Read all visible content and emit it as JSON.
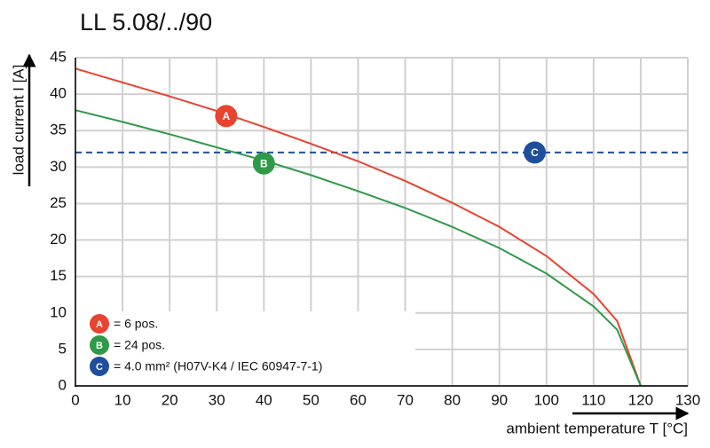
{
  "chart_data": {
    "type": "line",
    "title": "LL 5.08/../90",
    "x_label": "ambient temperature T [°C]",
    "y_label": "load current I [A]",
    "x": [
      0,
      10,
      20,
      30,
      40,
      50,
      60,
      70,
      80,
      90,
      100,
      110,
      115,
      120
    ],
    "series": [
      {
        "name": "A",
        "color": "#e8432e",
        "description": "= 6 pos.",
        "label_point": [
          32,
          37
        ],
        "values": [
          43.5,
          41.6,
          39.7,
          37.7,
          35.5,
          33.2,
          30.8,
          28.1,
          25.1,
          21.8,
          17.8,
          12.6,
          8.9,
          0
        ]
      },
      {
        "name": "B",
        "color": "#2e9a48",
        "description": "= 24 pos.",
        "label_point": [
          40,
          30.5
        ],
        "values": [
          37.8,
          36.2,
          34.5,
          32.7,
          30.9,
          28.9,
          26.7,
          24.4,
          21.8,
          18.9,
          15.4,
          10.9,
          7.7,
          0
        ]
      }
    ],
    "reference_line": {
      "name": "C",
      "value": 32,
      "label_x": 97.5,
      "color": "#1f4e9c",
      "description": "= 4.0 mm² (H07V-K4 / IEC 60947-7-1)"
    },
    "xlim": [
      0,
      130
    ],
    "ylim": [
      0,
      45
    ],
    "xticks": [
      0,
      10,
      20,
      30,
      40,
      50,
      60,
      70,
      80,
      90,
      100,
      110,
      120,
      130
    ],
    "yticks": [
      0,
      5,
      10,
      15,
      20,
      25,
      30,
      35,
      40,
      45
    ],
    "grid": true
  }
}
